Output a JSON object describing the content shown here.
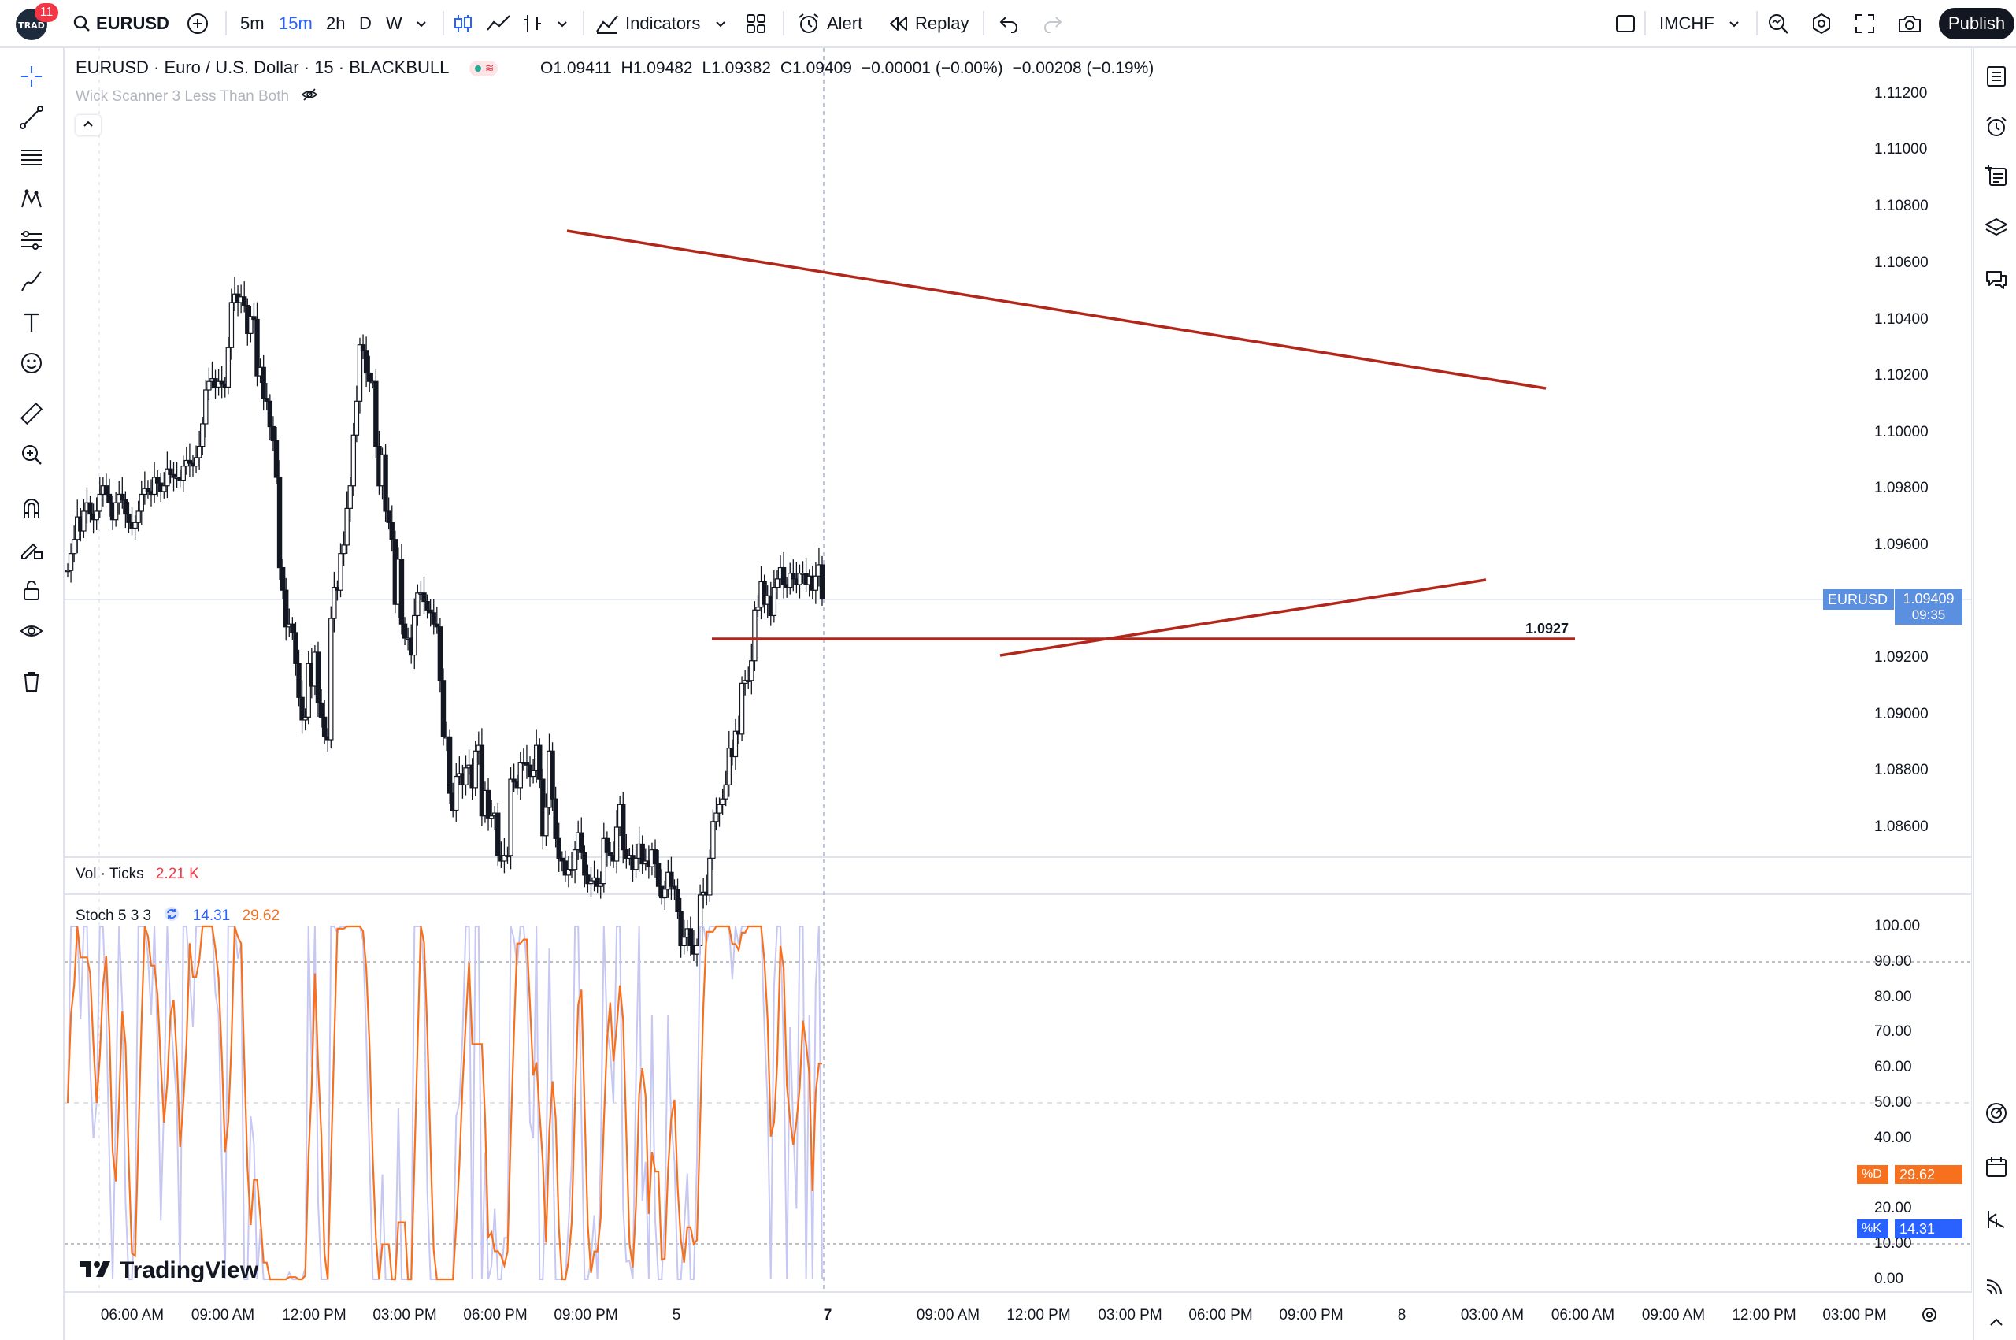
{
  "topbar": {
    "notification_count": "11",
    "symbol": "EURUSD",
    "intervals": [
      "5m",
      "15m",
      "2h",
      "D",
      "W"
    ],
    "indicators_label": "Indicators",
    "alert_label": "Alert",
    "replay_label": "Replay",
    "layout_name": "IMCHF",
    "publish_label": "Publish"
  },
  "legend": {
    "title": "EURUSD · Euro / U.S. Dollar · 15 · BLACKBULL",
    "open": "O1.09411",
    "high": "H1.09482",
    "low": "L1.09382",
    "close": "C1.09409",
    "change": "−0.00001 (−0.00%)",
    "change2": "−0.00208 (−0.19%)",
    "indicator": "Wick Scanner 3 Less Than Both"
  },
  "price_axis": [
    "1.11200",
    "1.11000",
    "1.10800",
    "1.10600",
    "1.10400",
    "1.10200",
    "1.10000",
    "1.09800",
    "1.09600",
    "1.09200",
    "1.09000",
    "1.08800",
    "1.08600"
  ],
  "price_badge": {
    "symbol": "EURUSD",
    "price": "1.09409",
    "countdown": "09:35"
  },
  "horizontal_line_label": "1.0927",
  "volume": {
    "label": "Vol · Ticks",
    "value": "2.21 K"
  },
  "stoch": {
    "label": "Stoch 5 3 3",
    "k_value": "14.31",
    "d_value": "29.62",
    "axis": [
      "100.00",
      "90.00",
      "80.00",
      "70.00",
      "60.00",
      "50.00",
      "40.00",
      "20.00",
      "10.00",
      "0.00"
    ],
    "d_badge_label": "%D",
    "k_badge_label": "%K",
    "k_color": "#b2b5f0",
    "d_color": "#f7701e"
  },
  "time_axis": [
    "06:00 AM",
    "09:00 AM",
    "12:00 PM",
    "03:00 PM",
    "06:00 PM",
    "09:00 PM",
    "5",
    "7",
    "09:00 AM",
    "12:00 PM",
    "03:00 PM",
    "06:00 PM",
    "09:00 PM",
    "8",
    "03:00 AM",
    "06:00 AM",
    "09:00 AM",
    "12:00 PM",
    "03:00 PM"
  ],
  "watermark": "TradingView",
  "colors": {
    "up": "#ffffff",
    "down": "#131722",
    "drawing": "#b2261b",
    "accent": "#2962ff",
    "price_badge": "#5b8fe0"
  },
  "chart_data": {
    "type": "candlestick",
    "symbol": "EURUSD",
    "interval": "15",
    "ylim": [
      1.0855,
      1.1125
    ],
    "closes": [
      1.0951,
      1.0957,
      1.0962,
      1.097,
      1.0965,
      1.0972,
      1.0975,
      1.0971,
      1.0969,
      1.0972,
      1.0978,
      1.0981,
      1.0978,
      1.0975,
      1.0969,
      1.0975,
      1.0978,
      1.0976,
      1.0971,
      1.0968,
      1.0966,
      1.0968,
      1.0972,
      1.0978,
      1.098,
      1.0979,
      1.0978,
      1.0984,
      1.0982,
      1.0979,
      1.0981,
      1.0987,
      1.0985,
      1.0984,
      1.0984,
      1.0983,
      1.0988,
      1.099,
      1.0989,
      1.0988,
      1.0991,
      1.0995,
      1.1003,
      1.1015,
      1.1018,
      1.1019,
      1.1016,
      1.1018,
      1.1017,
      1.1016,
      1.103,
      1.1046,
      1.1049,
      1.1046,
      1.1048,
      1.1045,
      1.1035,
      1.1041,
      1.104,
      1.102,
      1.1023,
      1.1012,
      1.1011,
      1.1002,
      1.0997,
      1.0984,
      1.0952,
      1.0944,
      1.0931,
      1.0932,
      1.0929,
      1.0918,
      1.0906,
      1.0898,
      1.0899,
      1.0918,
      1.091,
      1.0922,
      1.0904,
      1.0899,
      1.0892,
      1.0891,
      1.0934,
      1.0945,
      1.0944,
      1.0957,
      1.096,
      1.0973,
      1.0981,
      1.0999,
      1.1011,
      1.1031,
      1.1029,
      1.1021,
      1.1018,
      1.1018,
      1.0995,
      1.0981,
      1.0992,
      1.0972,
      1.0968,
      1.0962,
      1.0939,
      1.0955,
      1.0932,
      1.0927,
      1.0927,
      1.0921,
      1.0935,
      1.0943,
      1.0943,
      1.094,
      1.0937,
      1.0936,
      1.0932,
      1.0931,
      1.0912,
      1.0892,
      1.0892,
      1.0872,
      1.0866,
      1.0878,
      1.0879,
      1.0875,
      1.0881,
      1.0882,
      1.0874,
      1.0887,
      1.0889,
      1.0864,
      1.0873,
      1.0863,
      1.0864,
      1.0865,
      1.085,
      1.0848,
      1.085,
      1.085,
      1.0877,
      1.0876,
      1.0874,
      1.0883,
      1.0883,
      1.0882,
      1.0878,
      1.088,
      1.0889,
      1.0877,
      1.0857,
      1.0867,
      1.0887,
      1.087,
      1.0856,
      1.0849,
      1.0848,
      1.0843,
      1.0845,
      1.0845,
      1.0852,
      1.0858,
      1.0851,
      1.0843,
      1.084,
      1.0841,
      1.0842,
      1.0839,
      1.084,
      1.0856,
      1.0851,
      1.085,
      1.0848,
      1.086,
      1.0868,
      1.0852,
      1.0849,
      1.085,
      1.0845,
      1.0849,
      1.0854,
      1.0847,
      1.0848,
      1.0846,
      1.0852,
      1.0847,
      1.0839,
      1.0835,
      1.0838,
      1.0844,
      1.0839,
      1.0838,
      1.083,
      1.0818,
      1.0821,
      1.0824,
      1.0818,
      1.0815,
      1.0818,
      1.0836,
      1.0837,
      1.0836,
      1.0849,
      1.0862,
      1.0865,
      1.0868,
      1.087,
      1.0875,
      1.0888,
      1.0885,
      1.0894,
      1.0893,
      1.0911,
      1.0912,
      1.0912,
      1.0919,
      1.0937,
      1.0938,
      1.0947,
      1.0939,
      1.0942,
      1.0935,
      1.0945,
      1.0948,
      1.0952,
      1.0946,
      1.0945,
      1.095,
      1.0948,
      1.0946,
      1.095,
      1.095,
      1.0946,
      1.0949,
      1.0944,
      1.0949,
      1.0953,
      1.0941
    ]
  }
}
